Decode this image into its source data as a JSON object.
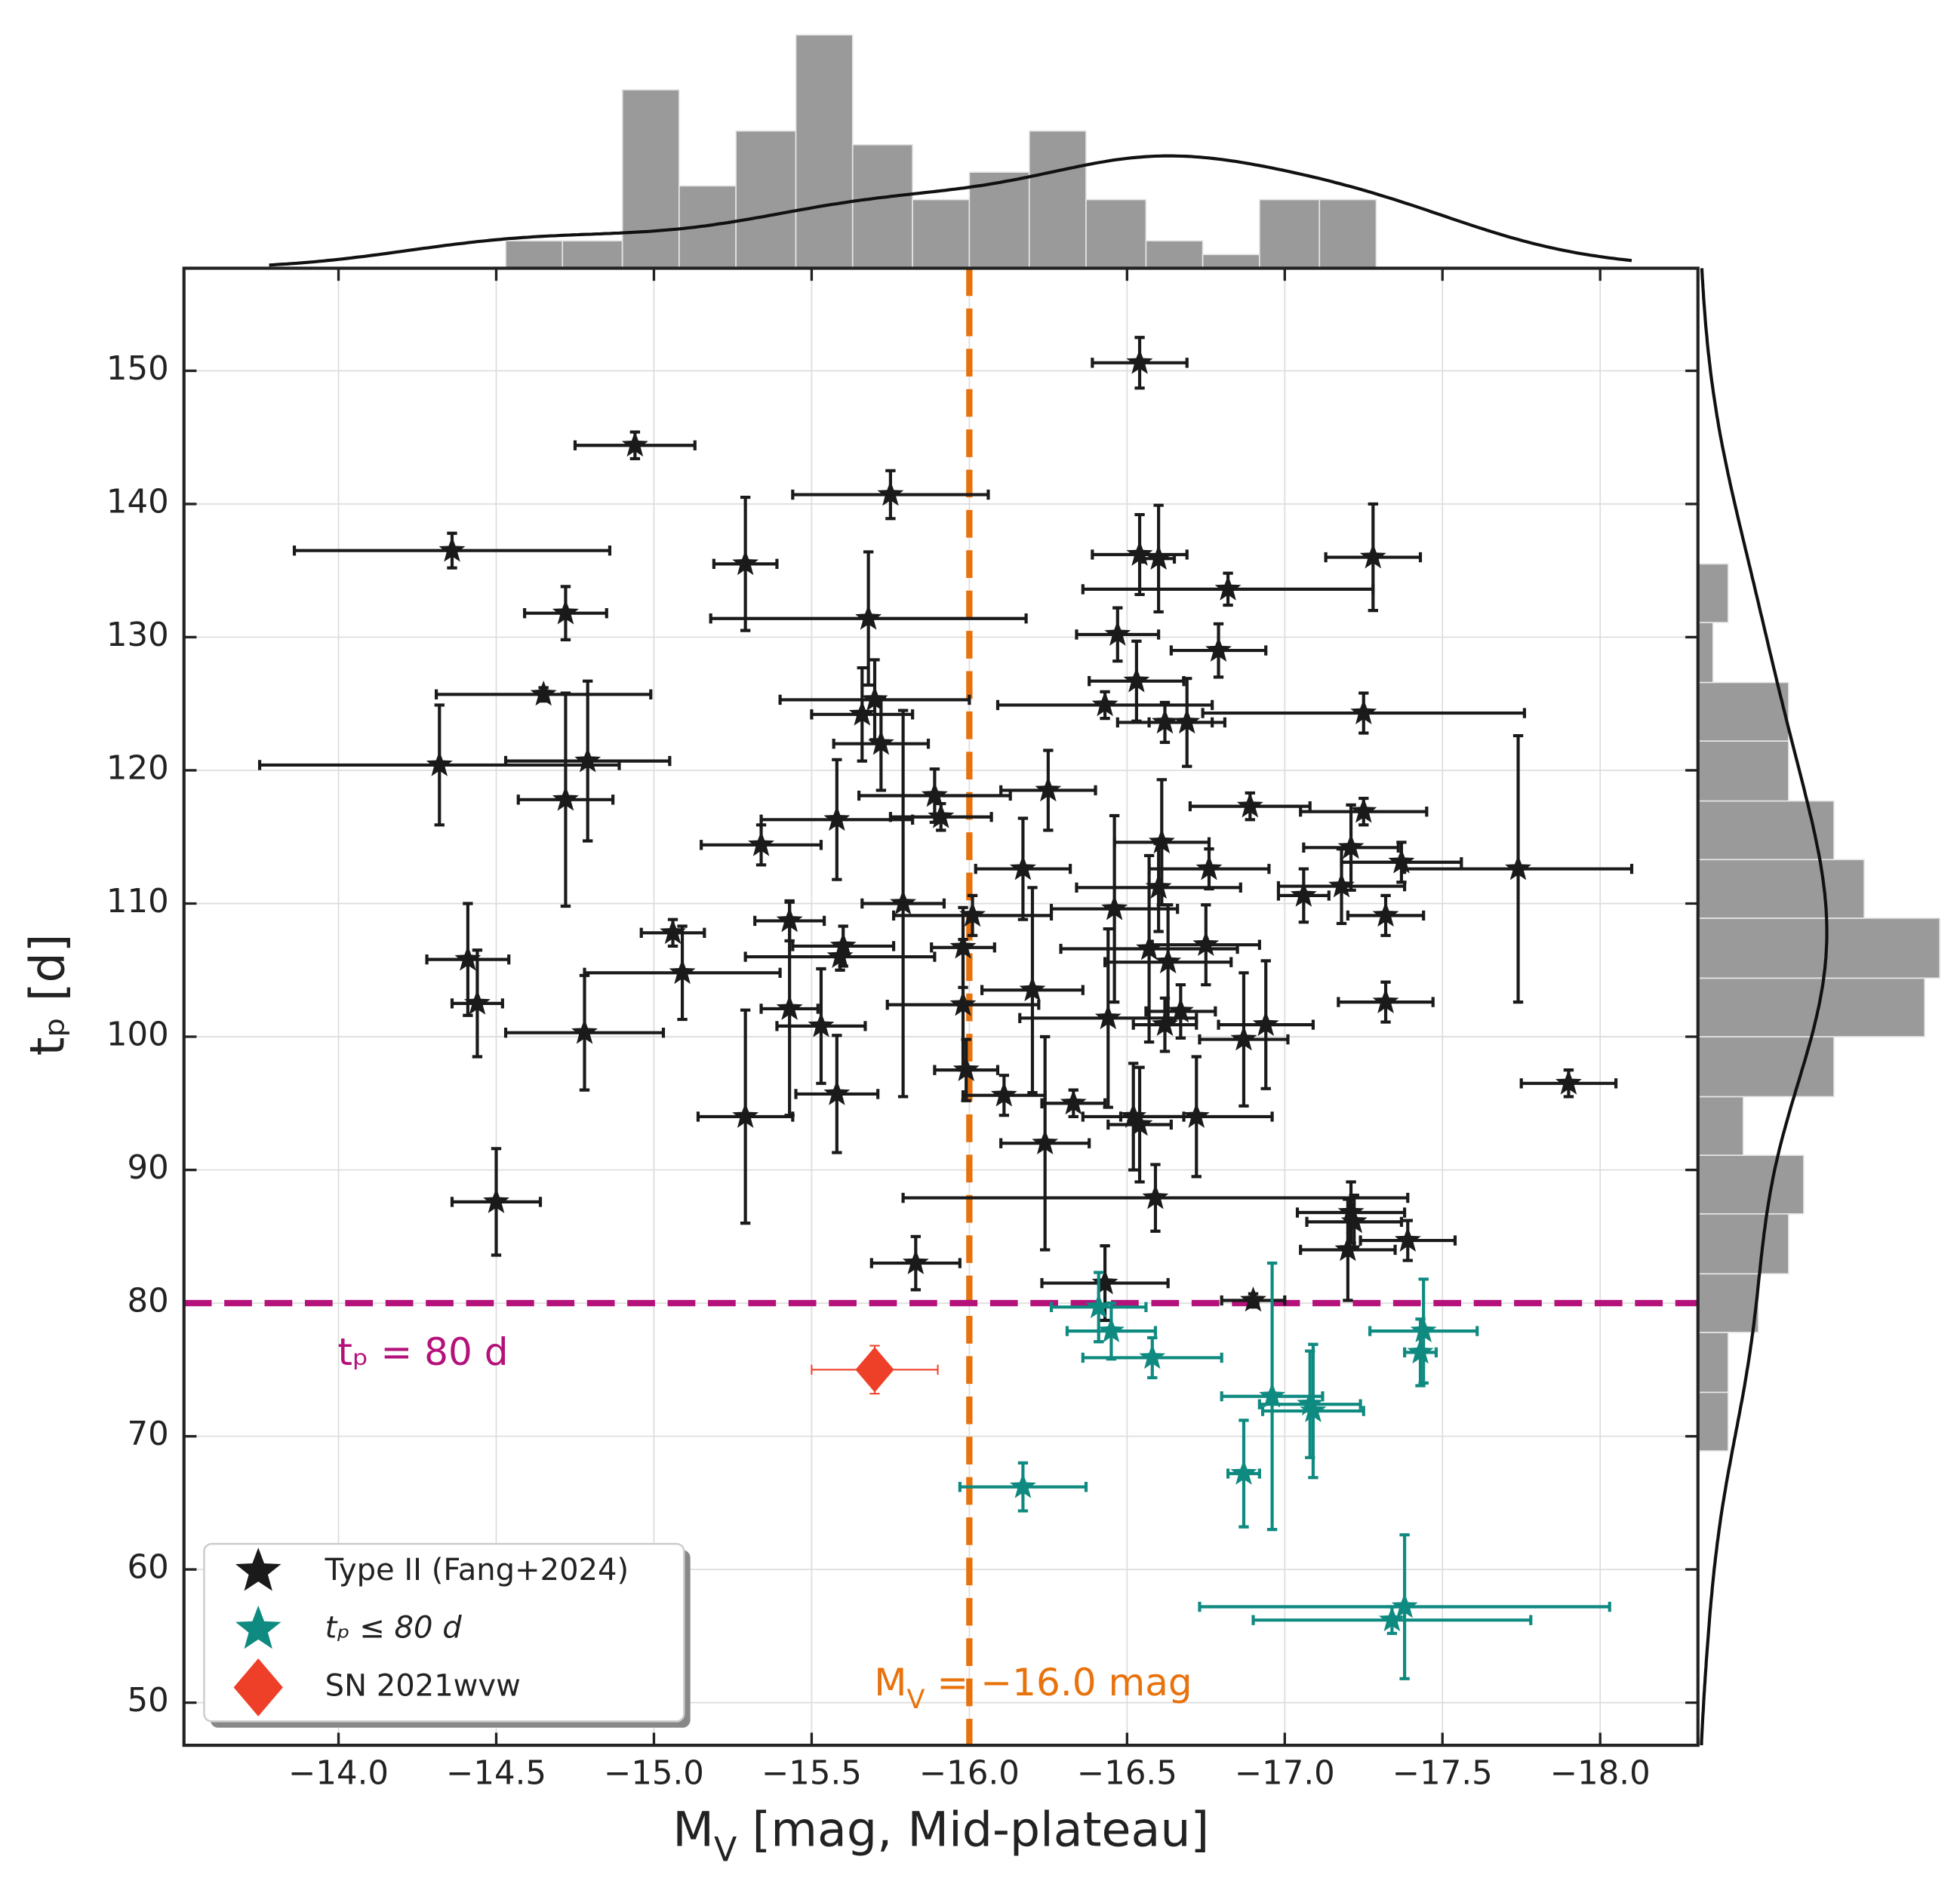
{
  "chart_data": {
    "type": "scatter",
    "xlabel": {
      "text": "M",
      "sub": "V",
      "tail": " [mag, Mid-plateau]"
    },
    "ylabel": "tₚ [d]",
    "xlim": [
      -13.51,
      -18.31
    ],
    "ylim": [
      46.8,
      157.7
    ],
    "xticks": [
      {
        "value": -14.0,
        "label": "−14.0"
      },
      {
        "value": -14.5,
        "label": "−14.5"
      },
      {
        "value": -15.0,
        "label": "−15.0"
      },
      {
        "value": -15.5,
        "label": "−15.5"
      },
      {
        "value": -16.0,
        "label": "−16.0"
      },
      {
        "value": -16.5,
        "label": "−16.5"
      },
      {
        "value": -17.0,
        "label": "−17.0"
      },
      {
        "value": -17.5,
        "label": "−17.5"
      },
      {
        "value": -18.0,
        "label": "−18.0"
      }
    ],
    "yticks": [
      50,
      60,
      70,
      80,
      90,
      100,
      110,
      120,
      130,
      140,
      150
    ],
    "grid": true,
    "legend": "lower left",
    "series": [
      {
        "name": "Type II (Fang+2024)",
        "color": "#1a1a1a",
        "marker": "star",
        "x": [
          -16.54,
          -14.94,
          -15.75,
          -14.36,
          -15.29,
          -16.54,
          -16.6,
          -17.28,
          -16.82,
          -14.72,
          -15.68,
          -16.47,
          -16.79,
          -16.53,
          -14.65,
          -15.7,
          -15.66,
          -16.43,
          -17.25,
          -16.62,
          -16.69,
          -15.72,
          -14.32,
          -14.79,
          -14.72,
          -16.25,
          -15.89,
          -15.91,
          -16.89,
          -17.25,
          -15.34,
          -15.58,
          -16.61,
          -17.21,
          -15.79,
          -16.17,
          -16.76,
          -17.37,
          -17.74,
          -16.6,
          -17.06,
          -17.18,
          -16.46,
          -16.01,
          -17.32,
          -15.43,
          -15.06,
          -15.6,
          -15.98,
          -16.57,
          -16.75,
          -14.41,
          -16.63,
          -15.59,
          -15.09,
          -16.2,
          -14.44,
          -17.32,
          -15.98,
          -15.43,
          -16.67,
          -16.44,
          -15.53,
          -16.62,
          -16.94,
          -14.78,
          -16.87,
          -15.99,
          -17.9,
          -15.58,
          -16.11,
          -16.33,
          -15.29,
          -16.52,
          -16.54,
          -16.72,
          -16.24,
          -14.5,
          -16.59,
          -17.21,
          -17.22,
          -17.39,
          -17.2,
          -15.83,
          -16.43,
          -16.9
        ],
        "values": [
          150.6,
          144.4,
          140.7,
          136.5,
          135.5,
          136.2,
          135.9,
          136.0,
          133.6,
          131.8,
          131.4,
          130.2,
          129.0,
          126.7,
          125.7,
          125.3,
          124.2,
          124.9,
          124.3,
          123.6,
          123.6,
          122.0,
          120.4,
          120.7,
          117.8,
          118.5,
          118.1,
          116.5,
          117.3,
          116.9,
          114.4,
          116.3,
          114.6,
          114.2,
          110.0,
          112.6,
          112.6,
          113.1,
          112.6,
          111.2,
          110.6,
          111.3,
          109.6,
          109.1,
          109.1,
          108.7,
          107.8,
          106.8,
          106.7,
          106.6,
          106.9,
          105.8,
          105.6,
          106.0,
          104.8,
          103.5,
          102.5,
          102.6,
          102.4,
          102.1,
          101.9,
          101.4,
          100.8,
          100.9,
          100.9,
          100.3,
          99.8,
          97.5,
          96.5,
          95.7,
          95.6,
          95.0,
          94.0,
          94.0,
          93.4,
          94.0,
          92.0,
          87.6,
          87.9,
          86.8,
          86.1,
          84.7,
          84.0,
          83.0,
          81.5,
          80.2
        ],
        "xerr": [
          0.15,
          0.19,
          0.31,
          0.5,
          0.1,
          0.15,
          0.05,
          0.15,
          0.46,
          0.13,
          0.5,
          0.13,
          0.15,
          0.15,
          0.34,
          0.3,
          0.16,
          0.34,
          0.51,
          0.15,
          0.12,
          0.15,
          0.57,
          0.26,
          0.15,
          0.15,
          0.24,
          0.16,
          0.19,
          0.2,
          0.19,
          0.24,
          0.15,
          0.15,
          0.13,
          0.15,
          0.19,
          0.19,
          0.36,
          0.26,
          0.08,
          0.2,
          0.2,
          0.25,
          0.12,
          0.11,
          0.1,
          0.16,
          0.1,
          0.28,
          0.17,
          0.13,
          0.2,
          0.3,
          0.31,
          0.16,
          0.08,
          0.15,
          0.24,
          0.09,
          0.11,
          0.28,
          0.14,
          0.1,
          0.15,
          0.25,
          0.14,
          0.1,
          0.15,
          0.13,
          0.13,
          0.1,
          0.15,
          0.16,
          0.1,
          0.24,
          0.14,
          0.14,
          0.8,
          0.17,
          0.15,
          0.15,
          0.15,
          0.14,
          0.2,
          0.1
        ],
        "yerr": [
          1.9,
          1.0,
          1.8,
          1.3,
          5.0,
          3.0,
          4.0,
          4.0,
          1.2,
          2.0,
          5.0,
          2.0,
          2.0,
          3.0,
          0.5,
          3.0,
          3.5,
          1.0,
          1.5,
          1.5,
          3.3,
          3.5,
          4.5,
          6.0,
          8.0,
          3.0,
          2.0,
          1.0,
          1.0,
          1.0,
          1.5,
          4.5,
          4.7,
          3.2,
          14.5,
          3.8,
          1.5,
          1.5,
          10.0,
          3.3,
          2.0,
          2.8,
          7.0,
          1.5,
          1.5,
          1.5,
          1.0,
          1.5,
          3.0,
          7.0,
          3.0,
          4.2,
          4.3,
          1.0,
          3.5,
          7.7,
          4.0,
          1.5,
          4.9,
          8.0,
          2.0,
          6.7,
          4.3,
          2.0,
          4.8,
          4.3,
          5.0,
          2.3,
          1.0,
          4.4,
          1.5,
          1.0,
          8.0,
          4.0,
          4.3,
          4.5,
          8.0,
          4.0,
          2.5,
          2.3,
          2.0,
          1.5,
          3.8,
          2.0,
          2.8,
          0.5
        ]
      },
      {
        "name": "tₚ ≤ 80 d",
        "color": "#0f8a80",
        "marker": "star",
        "x": [
          -16.41,
          -16.45,
          -17.44,
          -17.43,
          -16.58,
          -16.96,
          -17.09,
          -17.08,
          -16.87,
          -16.17,
          -17.38,
          -17.34
        ],
        "values": [
          79.7,
          77.9,
          77.9,
          76.3,
          75.9,
          73.0,
          71.9,
          72.4,
          67.2,
          66.2,
          57.2,
          56.2
        ],
        "xerr": [
          0.15,
          0.14,
          0.17,
          0.05,
          0.22,
          0.16,
          0.16,
          0.16,
          0.05,
          0.2,
          0.65,
          0.44
        ],
        "yerr": [
          2.6,
          2.1,
          3.9,
          2.5,
          1.5,
          10.0,
          5.0,
          4.0,
          4.0,
          1.8,
          5.4,
          1.0
        ]
      },
      {
        "name": "SN 2021wvw",
        "color": "#ee4028",
        "marker": "diamond",
        "x": [
          -15.7
        ],
        "values": [
          75.0
        ],
        "xerr": [
          0.2
        ],
        "yerr": [
          1.8
        ]
      }
    ],
    "vline": {
      "x": -16.0,
      "color": "#e8720c",
      "label": {
        "text": "M",
        "sub": "V",
        "tail": " = −16.0 mag"
      }
    },
    "hline": {
      "y": 80,
      "color": "#b5117a",
      "label": "tₚ = 80 d"
    },
    "top_histogram": {
      "color": "#9a9a9a",
      "bins": [
        -14.53,
        -14.71,
        -14.9,
        -15.08,
        -15.26,
        -15.45,
        -15.63,
        -15.82,
        -16.0,
        -16.19,
        -16.37,
        -16.56,
        -16.74,
        -16.92,
        -17.11,
        -17.29
      ],
      "counts": [
        2,
        2,
        13,
        6,
        10,
        17,
        9,
        5,
        7,
        10,
        5,
        2,
        1,
        5,
        5
      ]
    },
    "right_histogram": {
      "color": "#9a9a9a",
      "bins": [
        68.9,
        73.3,
        77.8,
        82.2,
        86.7,
        91.1,
        95.5,
        100.0,
        104.4,
        108.9,
        113.3,
        117.7,
        122.2,
        126.6,
        131.1,
        135.5
      ],
      "counts": [
        2,
        2,
        4,
        6,
        7,
        3,
        9,
        15,
        16,
        11,
        9,
        6,
        6,
        1,
        2
      ]
    }
  }
}
